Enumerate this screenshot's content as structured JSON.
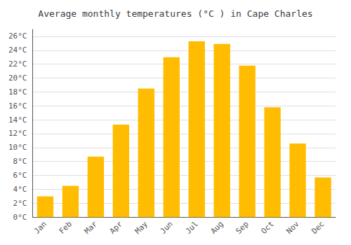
{
  "chart_data": {
    "type": "bar",
    "title": "Average monthly temperatures (°C ) in Cape Charles",
    "categories": [
      "Jan",
      "Feb",
      "Mar",
      "Apr",
      "May",
      "Jun",
      "Jul",
      "Aug",
      "Sep",
      "Oct",
      "Nov",
      "Dec"
    ],
    "values": [
      3.0,
      4.5,
      8.7,
      13.3,
      18.5,
      23.0,
      25.3,
      24.9,
      21.8,
      15.8,
      10.6,
      5.7
    ],
    "color": "#FFBC00",
    "ylim": [
      0,
      27
    ],
    "yticks": [
      {
        "value": 0,
        "label": "0°C"
      },
      {
        "value": 2,
        "label": "2°C"
      },
      {
        "value": 4,
        "label": "4°C"
      },
      {
        "value": 6,
        "label": "6°C"
      },
      {
        "value": 8,
        "label": "8°C"
      },
      {
        "value": 10,
        "label": "10°C"
      },
      {
        "value": 12,
        "label": "12°C"
      },
      {
        "value": 14,
        "label": "14°C"
      },
      {
        "value": 16,
        "label": "16°C"
      },
      {
        "value": 18,
        "label": "18°C"
      },
      {
        "value": 20,
        "label": "20°C"
      },
      {
        "value": 22,
        "label": "22°C"
      },
      {
        "value": 24,
        "label": "24°C"
      },
      {
        "value": 26,
        "label": "26°C"
      }
    ],
    "grid": true
  }
}
